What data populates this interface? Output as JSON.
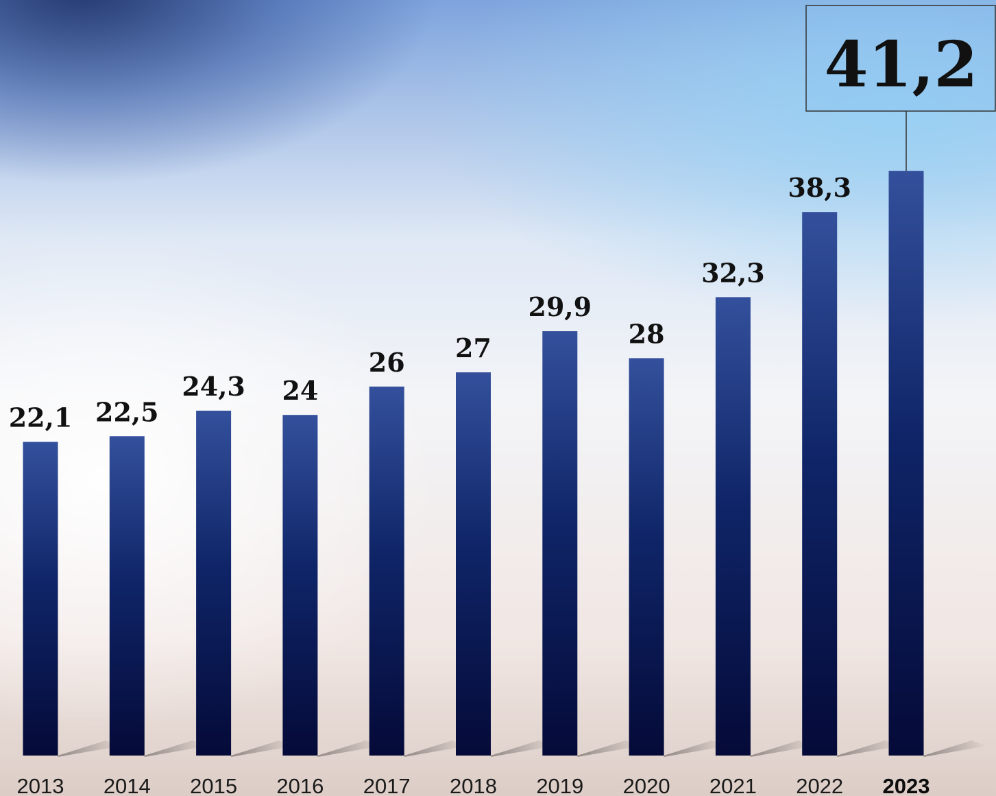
{
  "chart_data": {
    "type": "bar",
    "categories": [
      "2013",
      "2014",
      "2015",
      "2016",
      "2017",
      "2018",
      "2019",
      "2020",
      "2021",
      "2022",
      "2023"
    ],
    "values": [
      22.1,
      22.5,
      24.3,
      24,
      26,
      27,
      29.9,
      28,
      32.3,
      38.3,
      41.2
    ],
    "value_labels": [
      "22,1",
      "22,5",
      "24,3",
      "24",
      "26",
      "27",
      "29,9",
      "28",
      "32,3",
      "38,3",
      "41,2"
    ],
    "highlight": {
      "category": "2023",
      "label": "41,2"
    },
    "title": "",
    "xlabel": "",
    "ylabel": "",
    "ylim": [
      0,
      43
    ],
    "grid": false,
    "legend": "none",
    "colors": {
      "bar_top": "#34509c",
      "bar_mid": "#0f2568",
      "bar_bottom": "#050a38",
      "label": "#111111",
      "callout_border": "#333333"
    }
  }
}
